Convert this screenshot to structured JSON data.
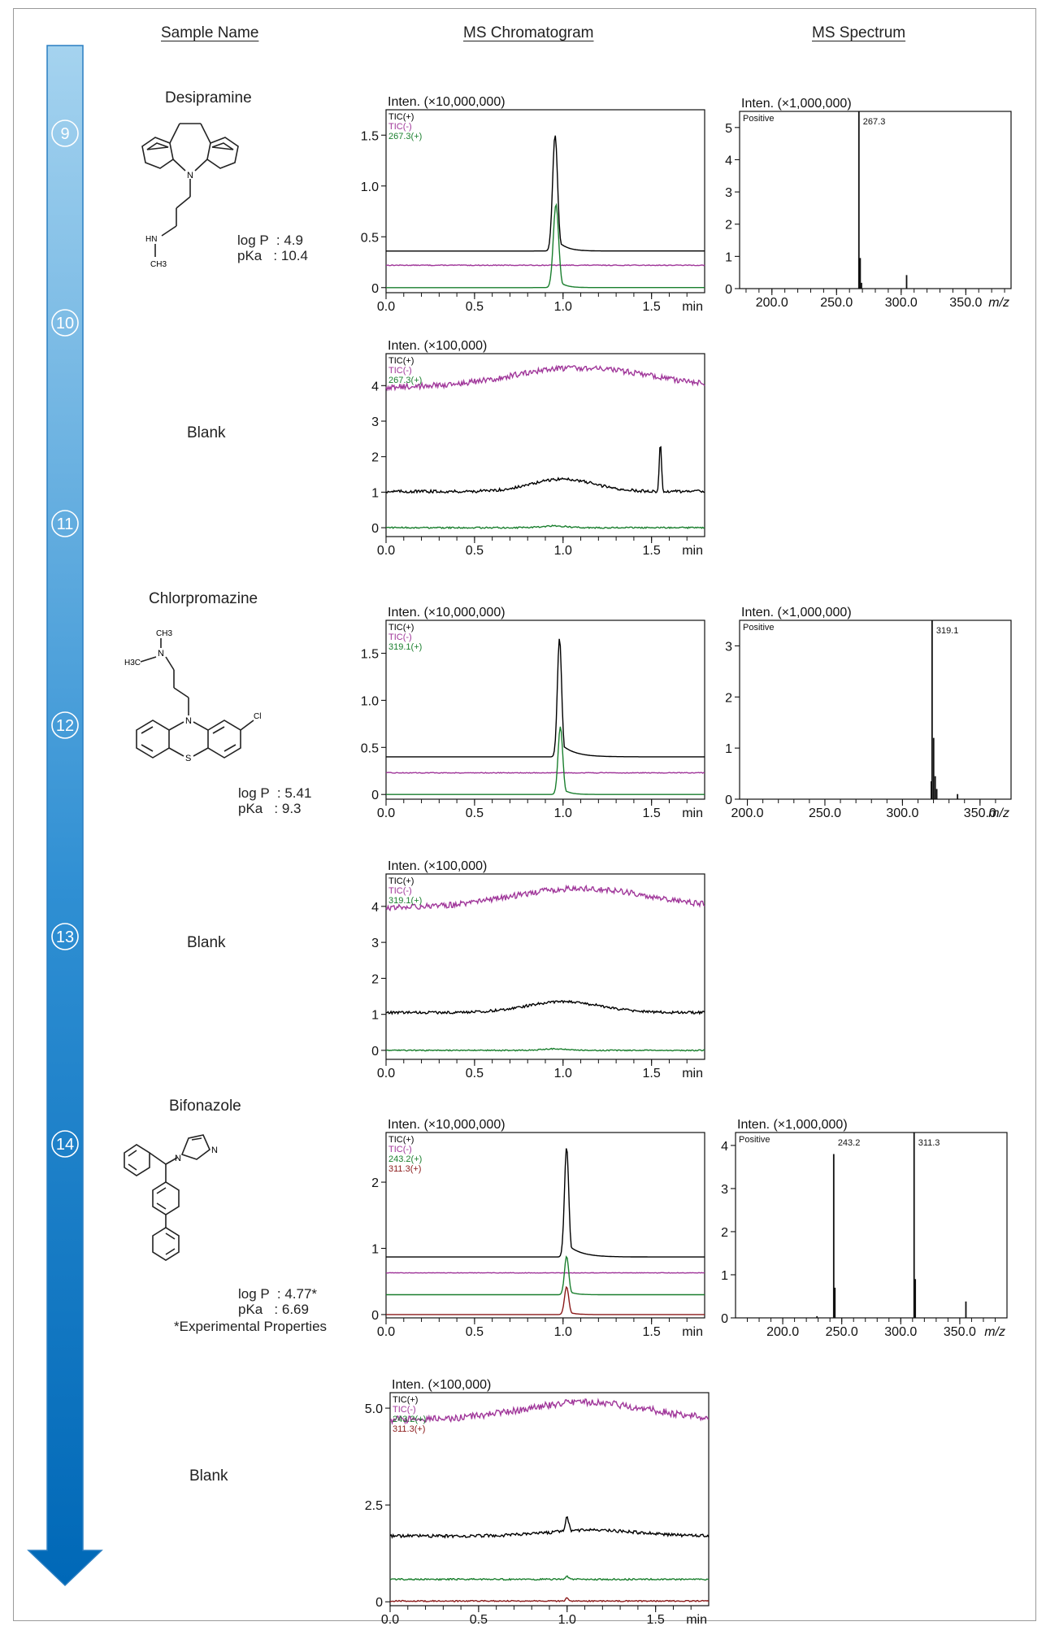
{
  "headers": {
    "sample_name": "Sample Name",
    "ms_chromatogram": "MS Chromatogram",
    "ms_spectrum": "MS Spectrum"
  },
  "steps": [
    "⑨",
    "⑩",
    "⑪",
    "⑫",
    "⑬",
    "⑭"
  ],
  "colors": {
    "arrow_top": "#a5d3ef",
    "arrow_bottom": "#0068b7",
    "tic_pos": "#000000",
    "tic_neg": "#a0379a",
    "ion1": "#1a7f2e",
    "ion2": "#8b1a1a"
  },
  "samples": [
    {
      "name": "Desipramine",
      "logp": "log P  : 4.9",
      "pka": "pKa   : 10.4",
      "note": "",
      "structure_labels": [
        "N",
        "HN",
        "CH3"
      ]
    },
    {
      "name": "Blank"
    },
    {
      "name": "Chlorpromazine",
      "logp": "log P  : 5.41",
      "pka": "pKa   : 9.3",
      "note": "",
      "structure_labels": [
        "CH3",
        "H3C",
        "N",
        "N",
        "Cl",
        "S"
      ]
    },
    {
      "name": "Blank"
    },
    {
      "name": "Bifonazole",
      "logp": "log P  : 4.77*",
      "pka": "pKa   : 6.69",
      "note": "*Experimental Properties",
      "structure_labels": [
        "N",
        "N"
      ]
    },
    {
      "name": "Blank"
    }
  ],
  "chart_data": [
    {
      "id": "chrom-9",
      "type": "line",
      "title": "Inten. (×10,000,000)",
      "xunit": "min",
      "xlim": [
        0,
        1.8
      ],
      "ylim": [
        -0.05,
        1.75
      ],
      "xticks": [
        "0.0",
        "0.5",
        "1.0",
        "1.5"
      ],
      "yticks": [
        "0",
        "0.5",
        "1.0",
        "1.5"
      ],
      "series": [
        {
          "name": "TIC(+)",
          "color": "tic_pos",
          "baseline": 0.36,
          "peaks": [
            [
              0.955,
              1.14,
              0.014
            ]
          ],
          "tail": 0.02
        },
        {
          "name": "TIC(-)",
          "color": "tic_neg",
          "baseline": 0.22,
          "peaks": [],
          "noise": 0.004
        },
        {
          "name": "267.3(+)",
          "color": "ion1",
          "baseline": 0.0,
          "peaks": [
            [
              0.96,
              0.82,
              0.015
            ]
          ],
          "tail": 0.015
        }
      ]
    },
    {
      "id": "spec-9",
      "type": "bar",
      "title": "Inten. (×1,000,000)",
      "annotation": "Positive",
      "xunit": "m/z",
      "xlim": [
        175,
        385
      ],
      "ylim": [
        0,
        5.5
      ],
      "xticks": [
        "200.0",
        "250.0",
        "300.0",
        "350.0"
      ],
      "yticks": [
        "0",
        "1",
        "2",
        "3",
        "4",
        "5"
      ],
      "peaks": [
        [
          267.3,
          5.5,
          "267.3"
        ],
        [
          268.3,
          0.95,
          ""
        ],
        [
          269.3,
          0.18,
          ""
        ],
        [
          304.2,
          0.42,
          ""
        ]
      ]
    },
    {
      "id": "chrom-10",
      "type": "line",
      "title": "Inten. (×100,000)",
      "xunit": "min",
      "xlim": [
        0,
        1.8
      ],
      "ylim": [
        -0.25,
        4.9
      ],
      "xticks": [
        "0.0",
        "0.5",
        "1.0",
        "1.5"
      ],
      "yticks": [
        "0",
        "1",
        "2",
        "3",
        "4"
      ],
      "series": [
        {
          "name": "TIC(+)",
          "color": "tic_pos",
          "baseline": 1.02,
          "hump": [
            1.0,
            0.35,
            0.25
          ],
          "peaks": [
            [
              1.55,
              1.4,
              0.006
            ]
          ],
          "noise": 0.04
        },
        {
          "name": "TIC(-)",
          "color": "tic_neg",
          "baseline": 3.95,
          "hump": [
            1.1,
            0.55,
            0.55
          ],
          "noise": 0.08
        },
        {
          "name": "267.3(+)",
          "color": "ion1",
          "baseline": 0.0,
          "hump": [
            0.95,
            0.05,
            0.1
          ],
          "noise": 0.02
        }
      ]
    },
    {
      "id": "chrom-11",
      "type": "line",
      "title": "Inten. (×10,000,000)",
      "xunit": "min",
      "xlim": [
        0,
        1.8
      ],
      "ylim": [
        -0.05,
        1.85
      ],
      "xticks": [
        "0.0",
        "0.5",
        "1.0",
        "1.5"
      ],
      "yticks": [
        "0",
        "0.5",
        "1.0",
        "1.5"
      ],
      "series": [
        {
          "name": "TIC(+)",
          "color": "tic_pos",
          "baseline": 0.4,
          "peaks": [
            [
              0.98,
              1.26,
              0.012
            ]
          ],
          "tail": 0.03
        },
        {
          "name": "TIC(-)",
          "color": "tic_neg",
          "baseline": 0.23,
          "peaks": [],
          "noise": 0.004
        },
        {
          "name": "319.1(+)",
          "color": "ion1",
          "baseline": 0.0,
          "peaks": [
            [
              0.985,
              0.72,
              0.013
            ]
          ],
          "tail": 0.015
        }
      ]
    },
    {
      "id": "spec-11",
      "type": "bar",
      "title": "Inten. (×1,000,000)",
      "annotation": "Positive",
      "xunit": "m/z",
      "xlim": [
        195,
        370
      ],
      "ylim": [
        0,
        3.5
      ],
      "xticks": [
        "200.0",
        "250.0",
        "300.0",
        "350.0"
      ],
      "yticks": [
        "0",
        "1",
        "2",
        "3"
      ],
      "peaks": [
        [
          319.1,
          3.5,
          "319.1"
        ],
        [
          320.1,
          1.2,
          ""
        ],
        [
          321.1,
          0.45,
          ""
        ],
        [
          318.6,
          0.35,
          ""
        ],
        [
          322.1,
          0.2,
          ""
        ],
        [
          335.5,
          0.1,
          ""
        ]
      ]
    },
    {
      "id": "chrom-12",
      "type": "line",
      "title": "Inten. (×100,000)",
      "xunit": "min",
      "xlim": [
        0,
        1.8
      ],
      "ylim": [
        -0.25,
        4.9
      ],
      "xticks": [
        "0.0",
        "0.5",
        "1.0",
        "1.5"
      ],
      "yticks": [
        "0",
        "1",
        "2",
        "3",
        "4"
      ],
      "series": [
        {
          "name": "TIC(+)",
          "color": "tic_pos",
          "baseline": 1.05,
          "hump": [
            1.0,
            0.3,
            0.3
          ],
          "noise": 0.035
        },
        {
          "name": "TIC(-)",
          "color": "tic_neg",
          "baseline": 3.95,
          "hump": [
            1.1,
            0.55,
            0.55
          ],
          "noise": 0.08
        },
        {
          "name": "319.1(+)",
          "color": "ion1",
          "baseline": 0.0,
          "hump": [
            0.95,
            0.04,
            0.1
          ],
          "noise": 0.015
        }
      ]
    },
    {
      "id": "chrom-13",
      "type": "line",
      "title": "Inten. (×10,000,000)",
      "xunit": "min",
      "xlim": [
        0,
        1.8
      ],
      "ylim": [
        -0.05,
        2.75
      ],
      "xticks": [
        "0.0",
        "0.5",
        "1.0",
        "1.5"
      ],
      "yticks": [
        "0",
        "1",
        "2"
      ],
      "series": [
        {
          "name": "TIC(+)",
          "color": "tic_pos",
          "baseline": 0.87,
          "peaks": [
            [
              1.02,
              1.66,
              0.012
            ]
          ],
          "tail": 0.03
        },
        {
          "name": "TIC(-)",
          "color": "tic_neg",
          "baseline": 0.63,
          "peaks": [],
          "noise": 0.004
        },
        {
          "name": "243.2(+)",
          "color": "ion1",
          "baseline": 0.3,
          "peaks": [
            [
              1.02,
              0.58,
              0.012
            ]
          ],
          "tail": 0.015
        },
        {
          "name": "311.3(+)",
          "color": "ion2",
          "baseline": 0.0,
          "peaks": [
            [
              1.02,
              0.42,
              0.012
            ]
          ],
          "tail": 0.015
        }
      ]
    },
    {
      "id": "spec-13",
      "type": "bar",
      "title": "Inten. (×1,000,000)",
      "annotation": "Positive",
      "xunit": "m/z",
      "xlim": [
        160,
        390
      ],
      "ylim": [
        0,
        4.3
      ],
      "xticks": [
        "200.0",
        "250.0",
        "300.0",
        "350.0"
      ],
      "yticks": [
        "0",
        "1",
        "2",
        "3",
        "4"
      ],
      "peaks": [
        [
          243.2,
          3.8,
          "243.2"
        ],
        [
          244.2,
          0.7,
          ""
        ],
        [
          311.3,
          4.3,
          "311.3"
        ],
        [
          312.3,
          0.9,
          ""
        ],
        [
          355.2,
          0.38,
          ""
        ],
        [
          229.0,
          0.04,
          ""
        ]
      ]
    },
    {
      "id": "chrom-14",
      "type": "line",
      "title": "Inten. (×100,000)",
      "xunit": "min",
      "xlim": [
        0,
        1.8
      ],
      "ylim": [
        -0.1,
        5.4
      ],
      "xticks": [
        "0.0",
        "0.5",
        "1.0",
        "1.5"
      ],
      "yticks": [
        "0",
        "2.5",
        "5.0"
      ],
      "series": [
        {
          "name": "TIC(+)",
          "color": "tic_pos",
          "baseline": 1.7,
          "hump": [
            1.15,
            0.15,
            0.35
          ],
          "peaks": [
            [
              1.0,
              0.35,
              0.01
            ]
          ],
          "noise": 0.04
        },
        {
          "name": "TIC(-)",
          "color": "tic_neg",
          "baseline": 4.7,
          "hump": [
            1.1,
            0.45,
            0.5
          ],
          "noise": 0.09
        },
        {
          "name": "243.2(+)",
          "color": "ion1",
          "baseline": 0.58,
          "peaks": [
            [
              1.0,
              0.08,
              0.008
            ]
          ],
          "noise": 0.02
        },
        {
          "name": "311.3(+)",
          "color": "ion2",
          "baseline": 0.02,
          "peaks": [
            [
              1.0,
              0.08,
              0.008
            ]
          ],
          "noise": 0.015
        }
      ]
    }
  ]
}
